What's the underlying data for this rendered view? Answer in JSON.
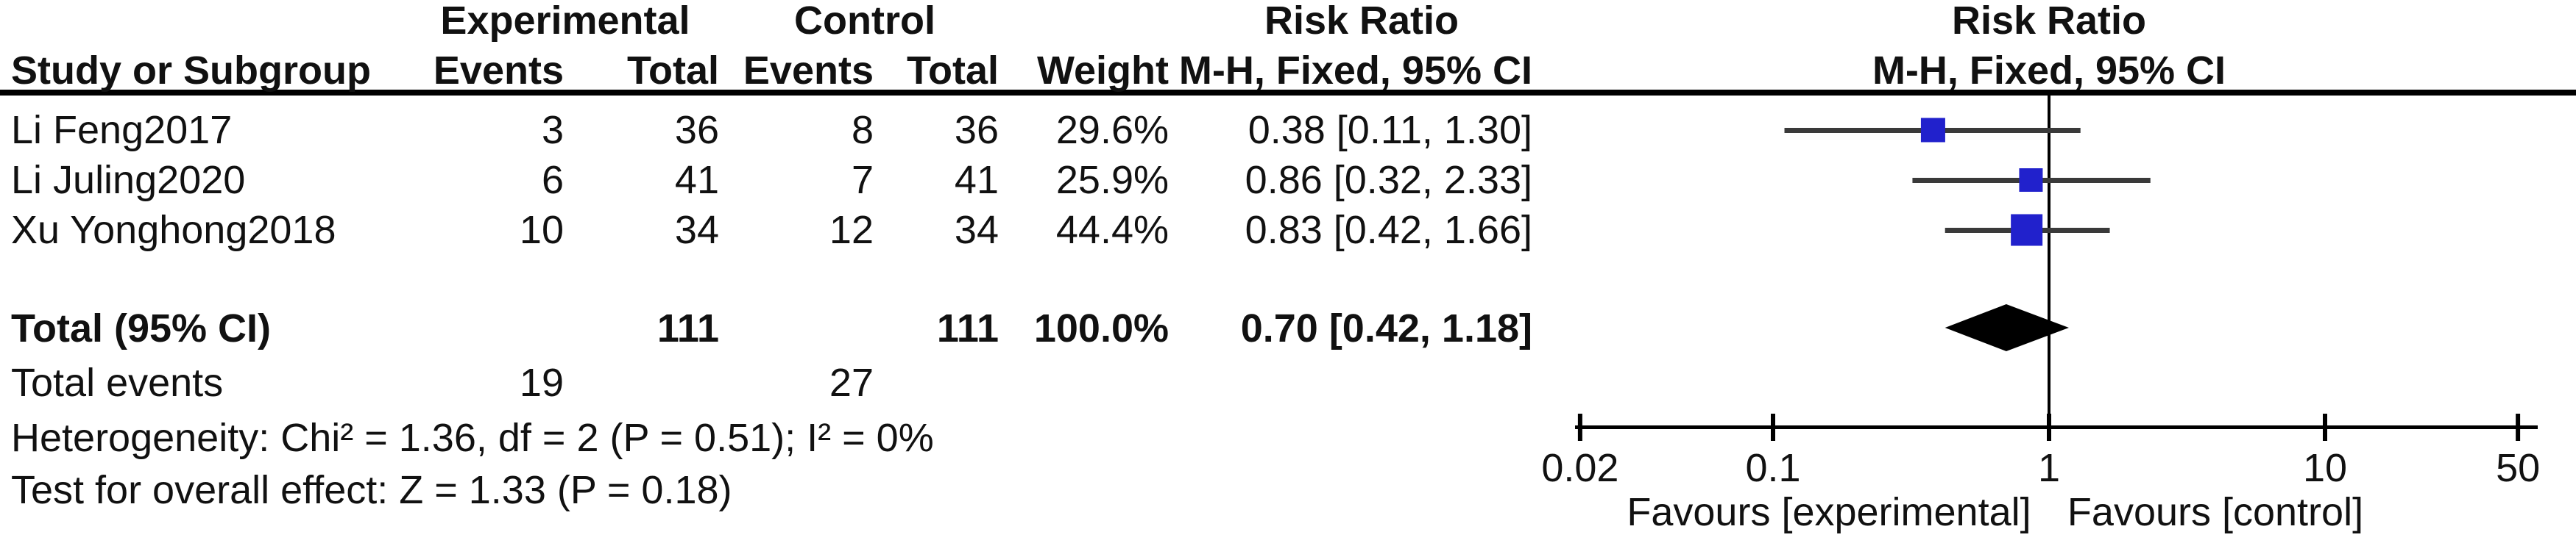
{
  "headers": {
    "study": "Study or Subgroup",
    "experimental": "Experimental",
    "control": "Control",
    "events": "Events",
    "total": "Total",
    "weight": "Weight",
    "risk_ratio": "Risk Ratio",
    "method_ci": "M-H, Fixed, 95% CI"
  },
  "chart_data": {
    "type": "forest",
    "effect_measure": "Risk Ratio",
    "method": "M-H, Fixed, 95% CI",
    "x_scale": "log",
    "x_ticks": [
      0.02,
      0.1,
      1,
      10,
      50
    ],
    "x_tick_labels": [
      "0.02",
      "0.1",
      "1",
      "10",
      "50"
    ],
    "x_range": [
      0.02,
      50
    ],
    "null_value": 1,
    "studies": [
      {
        "name": "Li Feng2017",
        "experimental_events": 3,
        "experimental_total": 36,
        "control_events": 8,
        "control_total": 36,
        "weight": "29.6%",
        "weight_value": 29.6,
        "rr": 0.38,
        "ci_low": 0.11,
        "ci_high": 1.3,
        "estimate_label": "0.38 [0.11, 1.30]"
      },
      {
        "name": "Li Juling2020",
        "experimental_events": 6,
        "experimental_total": 41,
        "control_events": 7,
        "control_total": 41,
        "weight": "25.9%",
        "weight_value": 25.9,
        "rr": 0.86,
        "ci_low": 0.32,
        "ci_high": 2.33,
        "estimate_label": "0.86 [0.32, 2.33]"
      },
      {
        "name": "Xu Yonghong2018",
        "experimental_events": 10,
        "experimental_total": 34,
        "control_events": 12,
        "control_total": 34,
        "weight": "44.4%",
        "weight_value": 44.4,
        "rr": 0.83,
        "ci_low": 0.42,
        "ci_high": 1.66,
        "estimate_label": "0.83 [0.42, 1.66]"
      }
    ],
    "total": {
      "label": "Total (95% CI)",
      "experimental_total": 111,
      "control_total": 111,
      "weight": "100.0%",
      "rr": 0.7,
      "ci_low": 0.42,
      "ci_high": 1.18,
      "estimate_label": "0.70 [0.42, 1.18]"
    },
    "total_events": {
      "label": "Total events",
      "experimental": 19,
      "control": 27
    },
    "heterogeneity": "Heterogeneity: Chi² = 1.36, df = 2 (P = 0.51); I² = 0%",
    "overall_effect": "Test for overall effect: Z = 1.33 (P = 0.18)",
    "favours_left": "Favours [experimental]",
    "favours_right": "Favours [control]",
    "colors": {
      "square": "#2121cc",
      "diamond": "#000000",
      "ci_line": "#3a3a3a",
      "axis": "#000000",
      "header_rule": "#000000"
    }
  }
}
